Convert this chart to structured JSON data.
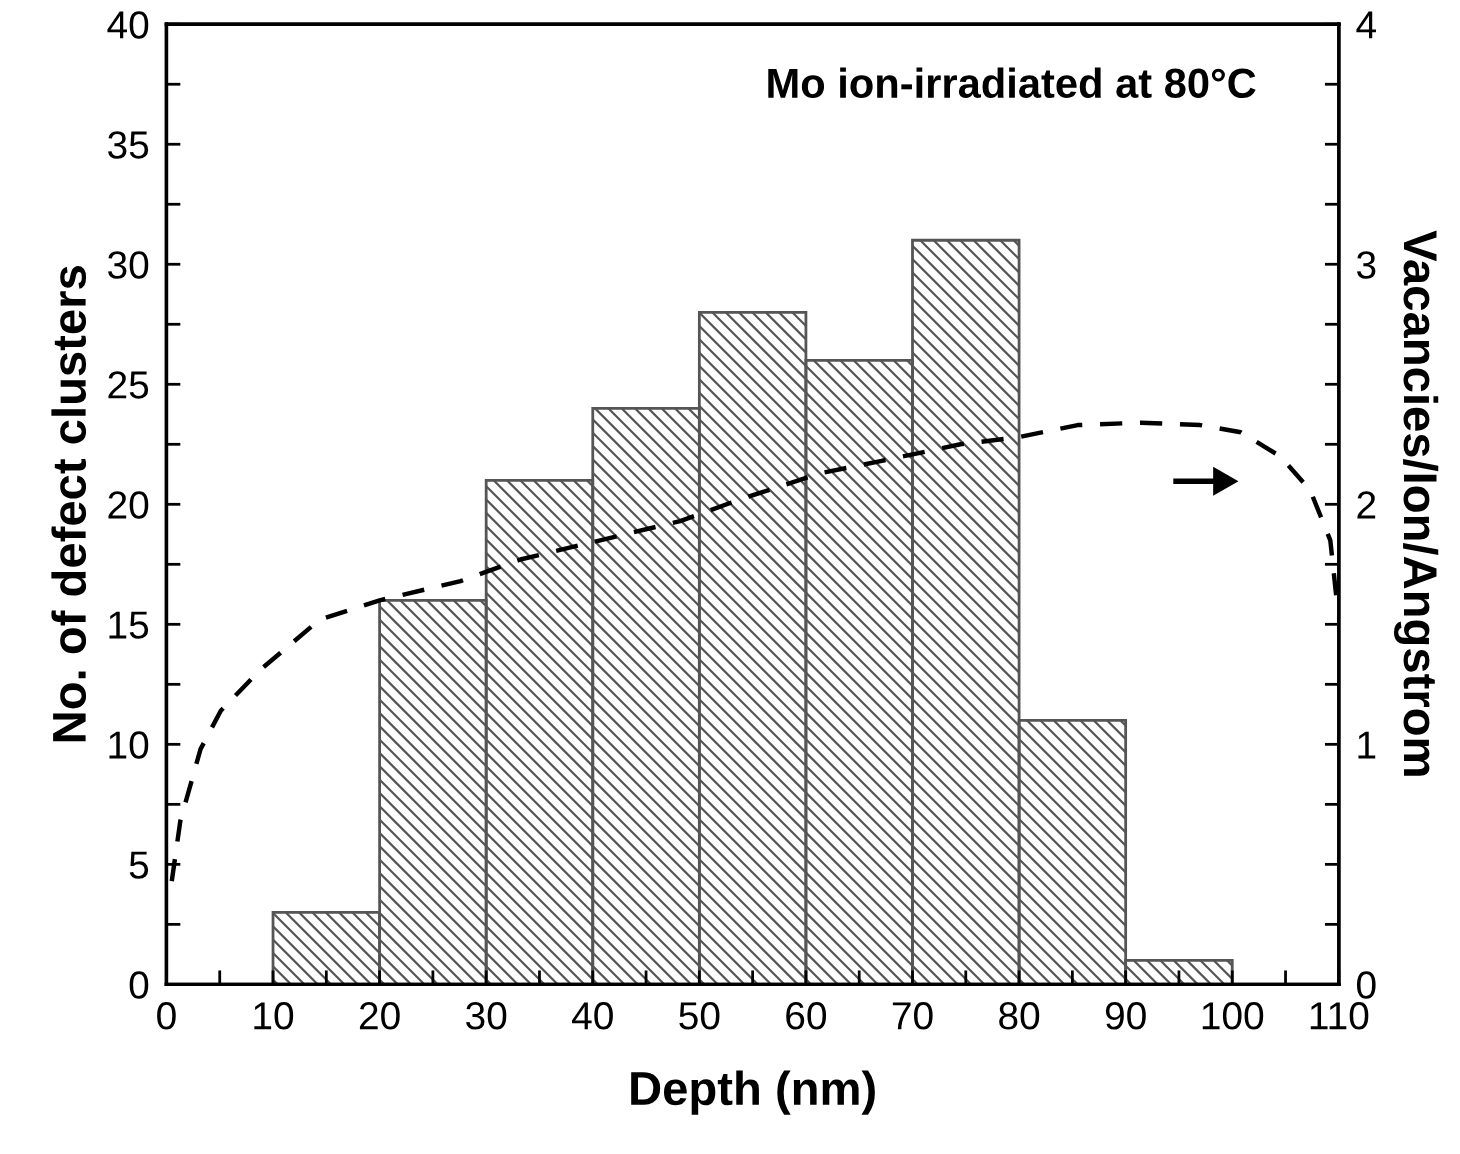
{
  "chart_data": {
    "type": "histogram",
    "title": "Mo ion-irradiated at 80°C",
    "xlabel": "Depth (nm)",
    "ylabel": "No. of defect clusters",
    "y2label": "Vacancies/Ion/Angstrom",
    "bins": [
      10,
      20,
      30,
      40,
      50,
      60,
      70,
      80,
      90,
      100
    ],
    "values": [
      3,
      16,
      21,
      24,
      28,
      26,
      31,
      11,
      1
    ],
    "color": "#555555",
    "series": [
      {
        "type": "line",
        "axis": "y2",
        "color": "#000000",
        "line_style": "dashed",
        "x": [
          0.5,
          1.3,
          3.2,
          5.1,
          8.8,
          14.4,
          20,
          27.6,
          33.2,
          40.7,
          48.2,
          53.8,
          61.4,
          67,
          74.5,
          80,
          85.5,
          91.4,
          97,
          100.8,
          104.5,
          107.3,
          109.2,
          109.8
        ],
        "values": [
          0.43,
          0.68,
          0.98,
          1.14,
          1.31,
          1.52,
          1.6,
          1.68,
          1.77,
          1.85,
          1.93,
          2.02,
          2.13,
          2.18,
          2.25,
          2.28,
          2.33,
          2.34,
          2.33,
          2.3,
          2.2,
          2.06,
          1.85,
          1.6
        ]
      }
    ],
    "xlim": [
      0,
      110
    ],
    "ylim": [
      0,
      40
    ],
    "y2lim": [
      0,
      4
    ],
    "xticks": [
      0,
      {
        "value": 5,
        "label": null
      },
      10,
      {
        "value": 15,
        "label": null
      },
      20,
      {
        "value": 25,
        "label": null
      },
      30,
      {
        "value": 35,
        "label": null
      },
      40,
      {
        "value": 45,
        "label": null
      },
      50,
      {
        "value": 55,
        "label": null
      },
      60,
      {
        "value": 65,
        "label": null
      },
      70,
      {
        "value": 75,
        "label": null
      },
      80,
      {
        "value": 85,
        "label": null
      },
      90,
      {
        "value": 95,
        "label": null
      },
      100,
      {
        "value": 105,
        "label": null
      },
      110
    ],
    "yticks": [
      0,
      {
        "value": 2.5,
        "label": null
      },
      5,
      {
        "value": 7.5,
        "label": null
      },
      10,
      {
        "value": 12.5,
        "label": null
      },
      15,
      {
        "value": 17.5,
        "label": null
      },
      20,
      {
        "value": 22.5,
        "label": null
      },
      25,
      {
        "value": 27.5,
        "label": null
      },
      30,
      {
        "value": 32.5,
        "label": null
      },
      35,
      {
        "value": 37.5,
        "label": null
      },
      40
    ],
    "y2ticks": [
      0,
      {
        "value": 0.25,
        "label": null
      },
      {
        "value": 0.5,
        "label": null
      },
      {
        "value": 0.75,
        "label": null
      },
      1,
      {
        "value": 1.25,
        "label": null
      },
      {
        "value": 1.5,
        "label": null
      },
      {
        "value": 1.75,
        "label": null
      },
      2,
      {
        "value": 2.25,
        "label": null
      },
      {
        "value": 2.5,
        "label": null
      },
      {
        "value": 2.75,
        "label": null
      },
      3,
      {
        "value": 3.25,
        "label": null
      },
      {
        "value": 3.5,
        "label": null
      },
      {
        "value": 3.75,
        "label": null
      },
      4
    ],
    "grid": false,
    "legend": false
  }
}
